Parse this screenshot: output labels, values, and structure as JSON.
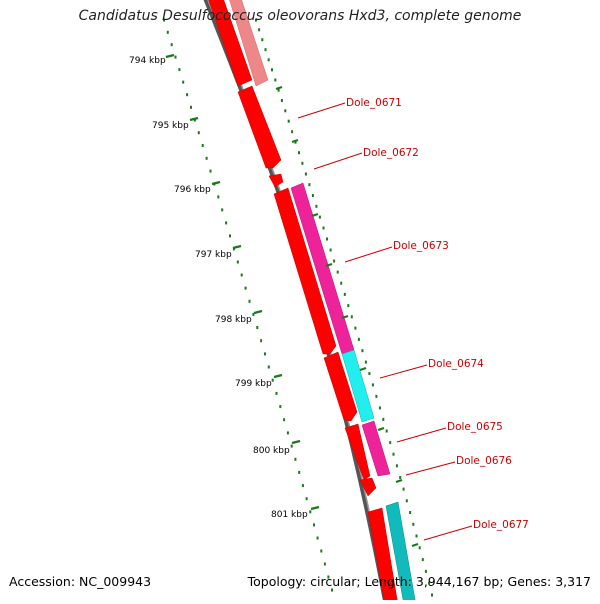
{
  "title": "Candidatus Desulfococcus oleovorans Hxd3, complete genome",
  "footer": {
    "accession": "Accession: NC_009943",
    "summary": "Topology: circular; Length: 3,944,167 bp; Genes: 3,317"
  },
  "colors": {
    "backbone": "#777777",
    "tick": "#1a7a1a",
    "gene_label": "#cc0000",
    "forward_red": "#ff0000",
    "pink_faded": "#ee8888",
    "magenta": "#ee2299",
    "cyan": "#22eeee",
    "teal": "#11bbbb"
  },
  "ruler": {
    "labels": [
      "794 kbp",
      "795 kbp",
      "796 kbp",
      "797 kbp",
      "798 kbp",
      "799 kbp",
      "800 kbp",
      "801 kbp"
    ]
  },
  "genes": [
    {
      "label": "Dole_0671"
    },
    {
      "label": "Dole_0672"
    },
    {
      "label": "Dole_0673"
    },
    {
      "label": "Dole_0674"
    },
    {
      "label": "Dole_0675"
    },
    {
      "label": "Dole_0676"
    },
    {
      "label": "Dole_0677"
    }
  ]
}
